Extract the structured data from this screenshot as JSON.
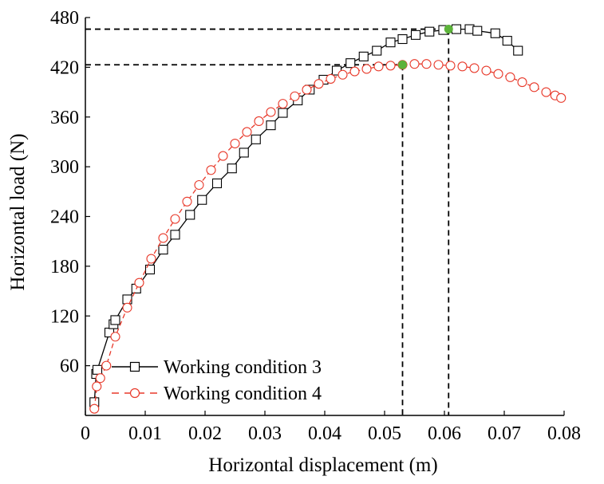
{
  "chart_data": {
    "type": "scatter",
    "title": "",
    "xlabel": "Horizontal displacement (m)",
    "ylabel": "Horizontal load (N)",
    "xlim": [
      0,
      0.08
    ],
    "ylim": [
      0,
      480
    ],
    "xticks": [
      {
        "value": 0,
        "label": "0"
      },
      {
        "value": 0.01,
        "label": "0.01"
      },
      {
        "value": 0.02,
        "label": "0.02"
      },
      {
        "value": 0.03,
        "label": "0.03"
      },
      {
        "value": 0.04,
        "label": "0.04"
      },
      {
        "value": 0.05,
        "label": "0.05"
      },
      {
        "value": 0.06,
        "label": "0.06"
      },
      {
        "value": 0.07,
        "label": "0.07"
      },
      {
        "value": 0.08,
        "label": "0.08"
      }
    ],
    "yticks": [
      {
        "value": 60,
        "label": "60"
      },
      {
        "value": 120,
        "label": "120"
      },
      {
        "value": 180,
        "label": "180"
      },
      {
        "value": 240,
        "label": "240"
      },
      {
        "value": 300,
        "label": "300"
      },
      {
        "value": 360,
        "label": "360"
      },
      {
        "value": 420,
        "label": "420"
      },
      {
        "value": 480,
        "label": "480"
      }
    ],
    "grid": false,
    "legend_position": "bottom-left",
    "series": [
      {
        "name": "Working condition 3",
        "color": "#000000",
        "marker": "open-square",
        "line": "solid",
        "x": [
          0.0015,
          0.0018,
          0.002,
          0.004,
          0.0047,
          0.005,
          0.007,
          0.0085,
          0.0108,
          0.013,
          0.015,
          0.0175,
          0.0195,
          0.022,
          0.0245,
          0.0265,
          0.0285,
          0.031,
          0.033,
          0.0355,
          0.0375,
          0.0398,
          0.042,
          0.0443,
          0.0465,
          0.0487,
          0.051,
          0.053,
          0.0552,
          0.0575,
          0.0598,
          0.062,
          0.0642,
          0.0655,
          0.0685,
          0.0705,
          0.0723
        ],
        "y": [
          16,
          50,
          55,
          100,
          110,
          115,
          140,
          153,
          176,
          200,
          218,
          242,
          260,
          280,
          298,
          317,
          333,
          350,
          365,
          380,
          393,
          405,
          416,
          425,
          433,
          440,
          450,
          454,
          459,
          463,
          465,
          466,
          466,
          464,
          461,
          452,
          440
        ]
      },
      {
        "name": "Working condition 4",
        "color": "#e8392a",
        "marker": "open-circle",
        "line": "dashed",
        "x": [
          0.0015,
          0.0019,
          0.0025,
          0.0035,
          0.005,
          0.007,
          0.009,
          0.011,
          0.013,
          0.015,
          0.017,
          0.019,
          0.021,
          0.023,
          0.025,
          0.027,
          0.029,
          0.031,
          0.033,
          0.035,
          0.037,
          0.039,
          0.041,
          0.043,
          0.045,
          0.047,
          0.049,
          0.051,
          0.053,
          0.055,
          0.057,
          0.059,
          0.061,
          0.063,
          0.065,
          0.067,
          0.069,
          0.071,
          0.073,
          0.075,
          0.077,
          0.0785,
          0.0795
        ],
        "y": [
          8,
          35,
          45,
          60,
          95,
          130,
          160,
          189,
          214,
          237,
          258,
          278,
          296,
          313,
          328,
          342,
          355,
          366,
          376,
          385,
          393,
          400,
          406,
          411,
          415,
          418,
          421,
          422,
          423,
          424,
          424,
          423,
          422,
          421,
          419,
          416,
          412,
          408,
          402,
          396,
          390,
          386,
          383
        ]
      }
    ],
    "highlight_points": [
      {
        "x": 0.0607,
        "y": 466,
        "color": "#5cb33a"
      },
      {
        "x": 0.053,
        "y": 423,
        "color": "#5cb33a"
      }
    ],
    "reference_lines": [
      {
        "x": 0.0607,
        "y": 466
      },
      {
        "x": 0.053,
        "y": 423
      }
    ]
  }
}
